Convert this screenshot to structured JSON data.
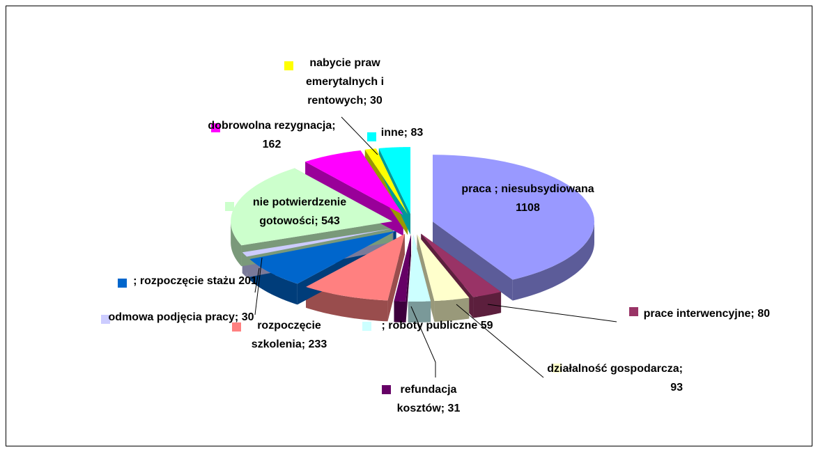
{
  "chart_data": {
    "type": "pie",
    "three_d": true,
    "exploded": true,
    "categories": [
      "praca ; niesubsydiowana",
      "prace interwencyjne;",
      "działalność gospodarcza;",
      "; roboty publiczne",
      "refundacja kosztów;",
      "rozpoczęcie szkolenia;",
      "; rozpoczęcie stażu",
      "odmowa podjęcia pracy;",
      "nie potwierdzenie gotowości;",
      "dobrowolna rezygnacja;",
      "nabycie praw emerytalnych i rentowych;",
      "inne;"
    ],
    "values": [
      1108,
      80,
      93,
      59,
      31,
      233,
      201,
      30,
      543,
      162,
      30,
      83
    ],
    "colors": [
      "#9999ff",
      "#993366",
      "#ffffcc",
      "#ccffff",
      "#660066",
      "#ff8080",
      "#0066cc",
      "#ccccff",
      "#ccffcc",
      "#ff00ff",
      "#ffff00",
      "#00ffff"
    ]
  }
}
